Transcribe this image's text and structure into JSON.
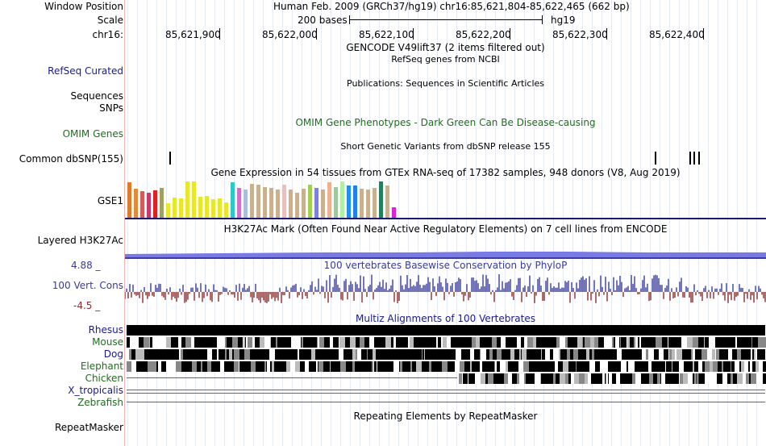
{
  "header": {
    "window_position_label": "Window Position",
    "scale_label": "Scale",
    "chrom_label": "chr16:",
    "position_text": "Human Feb. 2009 (GRCh37/hg19)   chr16:85,621,804-85,622,465 (662 bp)",
    "scale_text": "200 bases",
    "assembly": "hg19",
    "ticks": [
      "85,621,900",
      "85,622,000",
      "85,622,100",
      "85,622,200",
      "85,622,300",
      "85,622,400"
    ]
  },
  "tracks": {
    "gencode_title": "GENCODE V49lift37 (2 items filtered out)",
    "refseq_label": "RefSeq Curated",
    "refseq_title": "RefSeq genes from NCBI",
    "publications_title": "Publications: Sequences in Scientific Articles",
    "sequences_label": "Sequences",
    "snps_label": "SNPs",
    "omim_label": "OMIM Genes",
    "omim_title": "OMIM Gene Phenotypes - Dark Green Can Be Disease-causing",
    "dbsnp_title": "Short Genetic Variants from dbSNP release 155",
    "dbsnp_label": "Common dbSNP(155)",
    "gtex_title": "Gene Expression in 54 tissues from GTEx RNA-seq of 17382 samples, 948 donors (V8, Aug 2019)",
    "gtex_label": "GSE1",
    "h3k27_label": "Layered H3K27Ac",
    "h3k27_title": "H3K27Ac Mark (Often Found Near Active Regulatory Elements) on 7 cell lines from ENCODE",
    "cons_max": "4.88 _",
    "cons_label": "100 Vert. Cons",
    "cons_min": "-4.5 _",
    "cons_title": "100 vertebrates Basewise Conservation by PhyloP",
    "multiz_title": "Multiz Alignments of 100 Vertebrates",
    "species": [
      "Rhesus",
      "Mouse",
      "Dog",
      "Elephant",
      "Chicken",
      "X_tropicalis",
      "Zebrafish"
    ],
    "repeat_label": "RepeatMasker",
    "repeat_title": "Repeating Elements by RepeatMasker"
  },
  "colors": {
    "label_blue": "#1a1a8c",
    "omim_green": "#1e6e1e",
    "cons_blue": "#3a3a9c",
    "cons_red": "#8b2c2c",
    "h3k27": "#7a7ae6"
  },
  "gtex_bars": [
    {
      "color": "#e07a2a",
      "h": 0.95
    },
    {
      "color": "#e58a3a",
      "h": 0.78
    },
    {
      "color": "#d65a5a",
      "h": 0.72
    },
    {
      "color": "#c93a6a",
      "h": 0.68
    },
    {
      "color": "#e02020",
      "h": 0.74
    },
    {
      "color": "#a0a060",
      "h": 0.8
    },
    {
      "color": "#e8e82a",
      "h": 0.4
    },
    {
      "color": "#e8e82a",
      "h": 0.55
    },
    {
      "color": "#e8e82a",
      "h": 0.52
    },
    {
      "color": "#e8e82a",
      "h": 0.97
    },
    {
      "color": "#e8e82a",
      "h": 0.97
    },
    {
      "color": "#e8e82a",
      "h": 0.56
    },
    {
      "color": "#e8e82a",
      "h": 0.58
    },
    {
      "color": "#e8e82a",
      "h": 0.5
    },
    {
      "color": "#e8e82a",
      "h": 0.53
    },
    {
      "color": "#e8e82a",
      "h": 0.42
    },
    {
      "color": "#2ac8c8",
      "h": 0.96
    },
    {
      "color": "#d070c8",
      "h": 0.8
    },
    {
      "color": "#a8c0e0",
      "h": 0.76
    },
    {
      "color": "#c8b090",
      "h": 0.92
    },
    {
      "color": "#c8b090",
      "h": 0.9
    },
    {
      "color": "#c8b090",
      "h": 0.82
    },
    {
      "color": "#c8b090",
      "h": 0.8
    },
    {
      "color": "#c8b090",
      "h": 0.76
    },
    {
      "color": "#e8c0c0",
      "h": 0.9
    },
    {
      "color": "#c8b090",
      "h": 0.76
    },
    {
      "color": "#c8b090",
      "h": 0.68
    },
    {
      "color": "#c8b090",
      "h": 0.78
    },
    {
      "color": "#a0d050",
      "h": 0.9
    },
    {
      "color": "#8080e0",
      "h": 0.8
    },
    {
      "color": "#c8b090",
      "h": 0.75
    },
    {
      "color": "#f0b090",
      "h": 0.95
    },
    {
      "color": "#a0c8a0",
      "h": 0.82
    },
    {
      "color": "#b0f0a0",
      "h": 0.97
    },
    {
      "color": "#2090f0",
      "h": 0.88
    },
    {
      "color": "#2080f0",
      "h": 0.88
    },
    {
      "color": "#c8b090",
      "h": 0.78
    },
    {
      "color": "#c8b090",
      "h": 0.76
    },
    {
      "color": "#c8b090",
      "h": 0.8
    },
    {
      "color": "#208060",
      "h": 0.97
    },
    {
      "color": "#c8b090",
      "h": 0.88
    },
    {
      "color": "#e020e0",
      "h": 0.28
    }
  ]
}
